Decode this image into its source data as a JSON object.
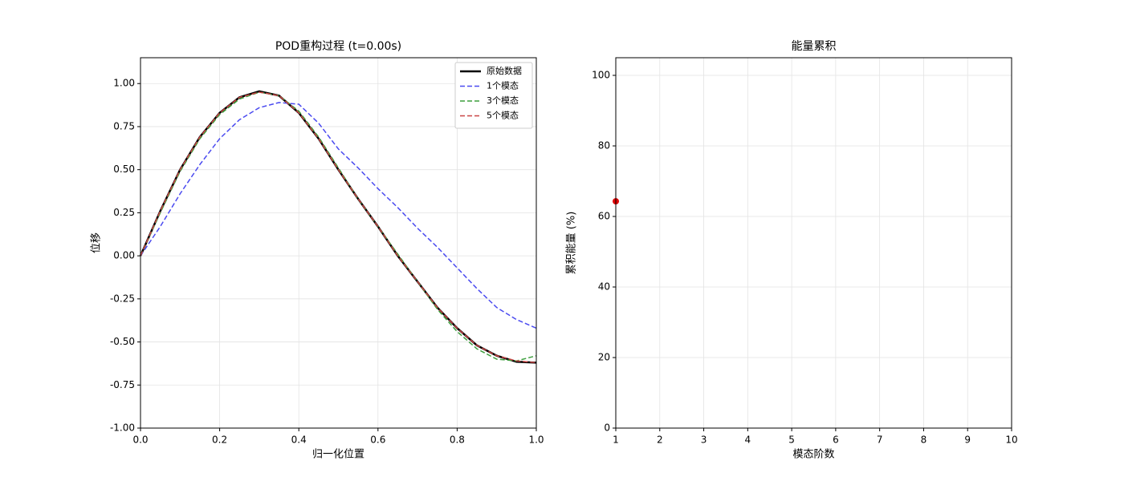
{
  "chart_data": [
    {
      "type": "line",
      "title": "POD重构过程 (t=0.00s)",
      "x_label": "归一化位置",
      "y_label": "位移",
      "x": [
        0,
        0.05,
        0.1,
        0.15,
        0.2,
        0.25,
        0.3,
        0.35,
        0.4,
        0.45,
        0.5,
        0.55,
        0.6,
        0.65,
        0.7,
        0.75,
        0.8,
        0.85,
        0.9,
        0.95,
        1
      ],
      "series": [
        {
          "name": "原始数据",
          "color": "#000000",
          "style": "solid",
          "values": [
            0,
            0.26,
            0.5,
            0.69,
            0.83,
            0.92,
            0.955,
            0.93,
            0.83,
            0.68,
            0.5,
            0.33,
            0.17,
            0,
            -0.15,
            -0.3,
            -0.42,
            -0.52,
            -0.58,
            -0.615,
            -0.62
          ]
        },
        {
          "name": "1个模态",
          "color": "#4a4af0",
          "style": "dashed",
          "values": [
            0,
            0.17,
            0.36,
            0.53,
            0.68,
            0.79,
            0.86,
            0.89,
            0.88,
            0.77,
            0.62,
            0.51,
            0.39,
            0.28,
            0.16,
            0.05,
            -0.07,
            -0.19,
            -0.3,
            -0.37,
            -0.42
          ]
        },
        {
          "name": "3个模态",
          "color": "#3d9e3d",
          "style": "dashed",
          "values": [
            0,
            0.25,
            0.49,
            0.68,
            0.82,
            0.91,
            0.95,
            0.93,
            0.84,
            0.69,
            0.51,
            0.33,
            0.17,
            0.01,
            -0.15,
            -0.31,
            -0.44,
            -0.54,
            -0.6,
            -0.61,
            -0.58
          ]
        },
        {
          "name": "5个模态",
          "color": "#c94444",
          "style": "dashed",
          "values": [
            0,
            0.26,
            0.5,
            0.69,
            0.83,
            0.92,
            0.95,
            0.93,
            0.83,
            0.68,
            0.5,
            0.33,
            0.17,
            0,
            -0.15,
            -0.3,
            -0.42,
            -0.52,
            -0.58,
            -0.61,
            -0.62
          ]
        }
      ],
      "xlim": [
        0,
        1
      ],
      "ylim": [
        -1,
        1.15
      ],
      "xticks": [
        {
          "value": 0,
          "label": "0.0"
        },
        0.2,
        0.4,
        0.6,
        0.8,
        {
          "value": 1,
          "label": "1.0"
        }
      ],
      "yticks": [
        {
          "value": -1,
          "label": "-1.00"
        },
        {
          "value": -0.75,
          "label": "-0.75"
        },
        {
          "value": -0.5,
          "label": "-0.50"
        },
        {
          "value": -0.25,
          "label": "-0.25"
        },
        {
          "value": 0,
          "label": "0.00"
        },
        {
          "value": 0.25,
          "label": "0.25"
        },
        {
          "value": 0.5,
          "label": "0.50"
        },
        {
          "value": 0.75,
          "label": "0.75"
        },
        {
          "value": 1,
          "label": "1.00"
        }
      ],
      "grid": true,
      "legend": "upper right"
    },
    {
      "type": "scatter",
      "title": "能量累积",
      "x_label": "模态阶数",
      "y_label": "累积能量 (%)",
      "x": [
        1
      ],
      "values": [
        64.3
      ],
      "color": "#e00000",
      "xlim": [
        1,
        10
      ],
      "ylim": [
        0,
        105
      ],
      "xticks": [
        1,
        2,
        3,
        4,
        5,
        6,
        7,
        8,
        9,
        10
      ],
      "yticks": [
        0,
        20,
        40,
        60,
        80,
        100
      ],
      "grid": true
    }
  ]
}
